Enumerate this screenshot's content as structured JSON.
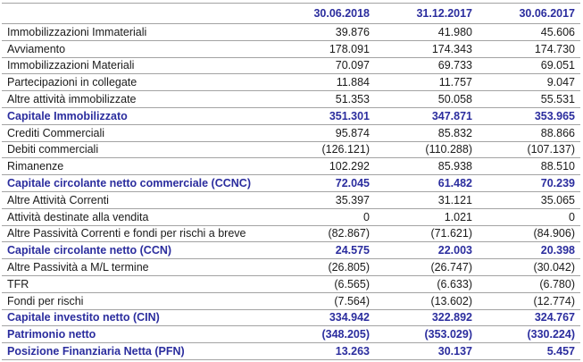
{
  "colors": {
    "accent": "#2b2d9e",
    "text": "#1a1a1a",
    "border": "#a3a3a3",
    "background": "#ffffff"
  },
  "table": {
    "columns": [
      "30.06.2018",
      "31.12.2017",
      "30.06.2017"
    ],
    "rows": [
      {
        "label": "Immobilizzazioni Immateriali",
        "values": [
          "39.876",
          "41.980",
          "45.606"
        ],
        "emphasis": false
      },
      {
        "label": "Avviamento",
        "values": [
          "178.091",
          "174.343",
          "174.730"
        ],
        "emphasis": false
      },
      {
        "label": "Immobilizzazioni Materiali",
        "values": [
          "70.097",
          "69.733",
          "69.051"
        ],
        "emphasis": false
      },
      {
        "label": "Partecipazioni in collegate",
        "values": [
          "11.884",
          "11.757",
          "9.047"
        ],
        "emphasis": false
      },
      {
        "label": "Altre attività immobilizzate",
        "values": [
          "51.353",
          "50.058",
          "55.531"
        ],
        "emphasis": false
      },
      {
        "label": "Capitale Immobilizzato",
        "values": [
          "351.301",
          "347.871",
          "353.965"
        ],
        "emphasis": true
      },
      {
        "label": "Crediti Commerciali",
        "values": [
          "95.874",
          "85.832",
          "88.866"
        ],
        "emphasis": false
      },
      {
        "label": "Debiti commerciali",
        "values": [
          "(126.121)",
          "(110.288)",
          "(107.137)"
        ],
        "emphasis": false
      },
      {
        "label": "Rimanenze",
        "values": [
          "102.292",
          "85.938",
          "88.510"
        ],
        "emphasis": false
      },
      {
        "label": "Capitale circolante netto commerciale (CCNC)",
        "values": [
          "72.045",
          "61.482",
          "70.239"
        ],
        "emphasis": true
      },
      {
        "label": "Altre Attività Correnti",
        "values": [
          "35.397",
          "31.121",
          "35.065"
        ],
        "emphasis": false
      },
      {
        "label": "Attività destinate alla vendita",
        "values": [
          "0",
          "1.021",
          "0"
        ],
        "emphasis": false
      },
      {
        "label": "Altre Passività Correnti e fondi per rischi a breve",
        "values": [
          "(82.867)",
          "(71.621)",
          "(84.906)"
        ],
        "emphasis": false
      },
      {
        "label": "Capitale circolante netto (CCN)",
        "values": [
          "24.575",
          "22.003",
          "20.398"
        ],
        "emphasis": true
      },
      {
        "label": "Altre Passività a M/L termine",
        "values": [
          "(26.805)",
          "(26.747)",
          "(30.042)"
        ],
        "emphasis": false
      },
      {
        "label": "TFR",
        "values": [
          "(6.565)",
          "(6.633)",
          "(6.780)"
        ],
        "emphasis": false
      },
      {
        "label": "Fondi per rischi",
        "values": [
          "(7.564)",
          "(13.602)",
          "(12.774)"
        ],
        "emphasis": false
      },
      {
        "label": "Capitale investito netto (CIN)",
        "values": [
          "334.942",
          "322.892",
          "324.767"
        ],
        "emphasis": true
      },
      {
        "label": "Patrimonio netto",
        "values": [
          "(348.205)",
          "(353.029)",
          "(330.224)"
        ],
        "emphasis": true
      },
      {
        "label": "Posizione Finanziaria Netta (PFN)",
        "values": [
          "13.263",
          "30.137",
          "5.457"
        ],
        "emphasis": true
      }
    ]
  }
}
